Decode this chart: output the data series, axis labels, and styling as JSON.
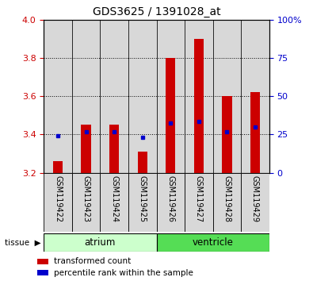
{
  "title": "GDS3625 / 1391028_at",
  "samples": [
    "GSM119422",
    "GSM119423",
    "GSM119424",
    "GSM119425",
    "GSM119426",
    "GSM119427",
    "GSM119428",
    "GSM119429"
  ],
  "bar_bottom": 3.2,
  "bar_tops": [
    3.26,
    3.45,
    3.45,
    3.31,
    3.8,
    3.9,
    3.6,
    3.62
  ],
  "percentile_values": [
    3.395,
    3.415,
    3.415,
    3.385,
    3.46,
    3.47,
    3.415,
    3.44
  ],
  "ylim": [
    3.2,
    4.0
  ],
  "yticks_left": [
    3.2,
    3.4,
    3.6,
    3.8,
    4.0
  ],
  "yticks_right": [
    0,
    25,
    50,
    75,
    100
  ],
  "bar_color": "#cc0000",
  "dot_color": "#0000cc",
  "atrium_color": "#ccffcc",
  "ventricle_color": "#55dd55",
  "cell_color": "#d8d8d8",
  "left_tick_color": "#cc0000",
  "right_tick_color": "#0000cc",
  "legend_red_label": "transformed count",
  "legend_blue_label": "percentile rank within the sample",
  "tissue_label": "tissue"
}
